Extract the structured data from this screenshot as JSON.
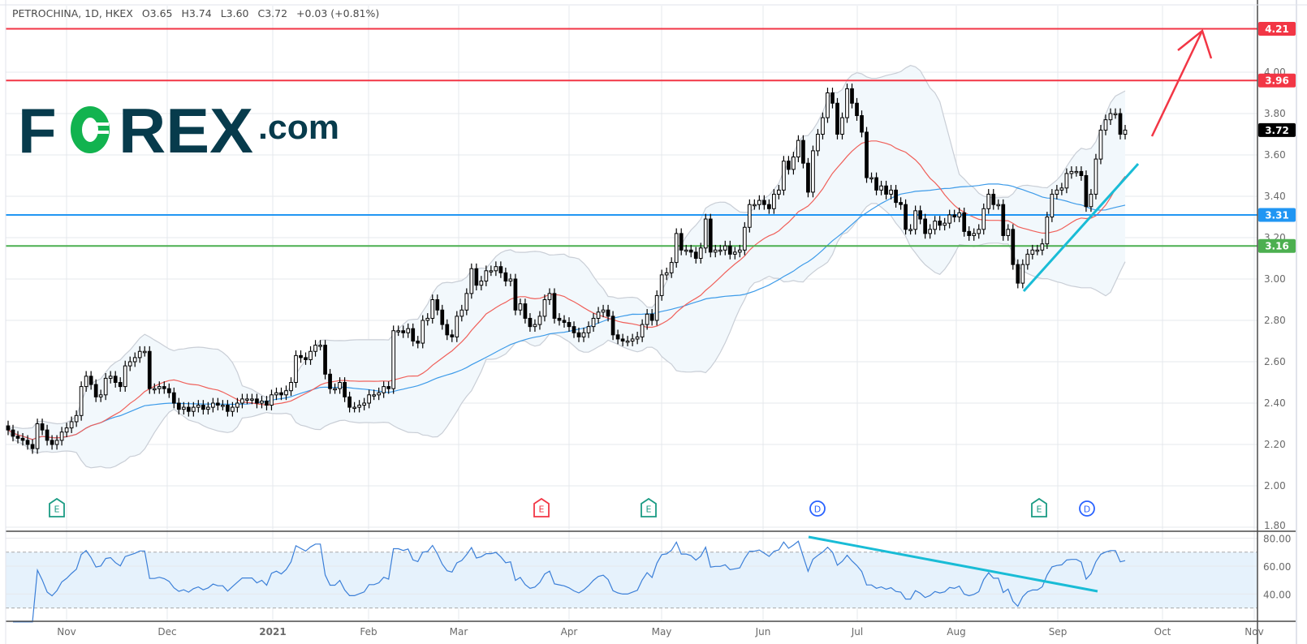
{
  "header": {
    "symbol": "PETROCHINA, 1D, HKEX",
    "open": "O3.65",
    "high": "H3.74",
    "low": "L3.60",
    "close": "C3.72",
    "change": "+0.03 (+0.81%)"
  },
  "logo": {
    "text": "FOREX.com",
    "primary_color": "#073b4c",
    "accent_color": "#12b34f"
  },
  "chart_data": {
    "type": "candlestick",
    "symbol": "PETROCHINA",
    "interval": "1D",
    "exchange": "HKEX",
    "closes": [
      2.27,
      2.24,
      2.23,
      2.22,
      2.2,
      2.18,
      2.3,
      2.27,
      2.22,
      2.2,
      2.22,
      2.26,
      2.28,
      2.31,
      2.34,
      2.48,
      2.53,
      2.49,
      2.43,
      2.44,
      2.52,
      2.53,
      2.5,
      2.48,
      2.58,
      2.6,
      2.62,
      2.65,
      2.65,
      2.47,
      2.47,
      2.48,
      2.47,
      2.45,
      2.4,
      2.37,
      2.38,
      2.36,
      2.38,
      2.39,
      2.37,
      2.38,
      2.4,
      2.39,
      2.39,
      2.36,
      2.38,
      2.4,
      2.42,
      2.42,
      2.42,
      2.4,
      2.41,
      2.39,
      2.44,
      2.45,
      2.44,
      2.46,
      2.5,
      2.63,
      2.62,
      2.61,
      2.65,
      2.68,
      2.68,
      2.54,
      2.47,
      2.47,
      2.5,
      2.43,
      2.38,
      2.38,
      2.39,
      2.4,
      2.44,
      2.44,
      2.45,
      2.48,
      2.47,
      2.75,
      2.75,
      2.74,
      2.76,
      2.7,
      2.69,
      2.8,
      2.81,
      2.9,
      2.85,
      2.78,
      2.73,
      2.72,
      2.82,
      2.85,
      2.93,
      3.05,
      2.97,
      2.99,
      3.04,
      3.04,
      3.06,
      3.03,
      2.99,
      3.0,
      2.85,
      2.88,
      2.81,
      2.77,
      2.78,
      2.82,
      2.9,
      2.93,
      2.81,
      2.8,
      2.79,
      2.77,
      2.74,
      2.72,
      2.74,
      2.77,
      2.81,
      2.84,
      2.85,
      2.82,
      2.73,
      2.71,
      2.7,
      2.7,
      2.71,
      2.72,
      2.78,
      2.83,
      2.8,
      2.92,
      3.02,
      3.03,
      3.08,
      3.22,
      3.14,
      3.14,
      3.13,
      3.1,
      3.15,
      3.29,
      3.13,
      3.14,
      3.14,
      3.16,
      3.12,
      3.13,
      3.14,
      3.25,
      3.36,
      3.36,
      3.38,
      3.36,
      3.34,
      3.41,
      3.43,
      3.57,
      3.53,
      3.59,
      3.67,
      3.56,
      3.42,
      3.62,
      3.7,
      3.78,
      3.9,
      3.85,
      3.7,
      3.78,
      3.92,
      3.85,
      3.79,
      3.71,
      3.49,
      3.49,
      3.43,
      3.45,
      3.41,
      3.43,
      3.37,
      3.36,
      3.24,
      3.24,
      3.33,
      3.29,
      3.22,
      3.24,
      3.28,
      3.26,
      3.27,
      3.31,
      3.3,
      3.32,
      3.23,
      3.21,
      3.22,
      3.24,
      3.34,
      3.41,
      3.36,
      3.36,
      3.21,
      3.24,
      3.07,
      2.98,
      3.07,
      3.12,
      3.14,
      3.14,
      3.17,
      3.3,
      3.41,
      3.43,
      3.44,
      3.51,
      3.52,
      3.52,
      3.5,
      3.35,
      3.41,
      3.58,
      3.72,
      3.77,
      3.8,
      3.8,
      3.7,
      3.72
    ],
    "last_price": "3.72",
    "x_ticks": [
      "Nov",
      "Dec",
      "2021",
      "Feb",
      "Mar",
      "Apr",
      "May",
      "Jun",
      "Jul",
      "Aug",
      "Sep",
      "Oct",
      "Nov"
    ],
    "y_ticks": [
      "4.00",
      "3.80",
      "3.60",
      "3.40",
      "3.20",
      "3.00",
      "2.80",
      "2.60",
      "2.40",
      "2.20",
      "2.00",
      "1.80"
    ],
    "ylim": [
      1.8,
      4.25
    ],
    "grid": true,
    "levels": [
      {
        "value": "4.21",
        "color": "#f23645"
      },
      {
        "value": "3.96",
        "color": "#f23645"
      },
      {
        "value": "3.31",
        "color": "#2196f3"
      },
      {
        "value": "3.16",
        "color": "#4caf50"
      }
    ],
    "indicators": {
      "ma_fast": {
        "period": 20,
        "color": "#f0605a"
      },
      "ma_slow": {
        "period": 50,
        "color": "#3d9be9"
      },
      "bollinger": {
        "period": 20,
        "stddev": 2,
        "color": "#c9ced6",
        "fill": "#f2f8fc"
      }
    },
    "annotations": {
      "price_trendline": {
        "from": [
          "Aug low",
          2.94
        ],
        "to": [
          "late Sep",
          3.58
        ],
        "color": "#19bcd6"
      },
      "target_arrow": {
        "target": 4.21,
        "color": "#f23645"
      },
      "rsi_trendline": {
        "color": "#19bcd6"
      }
    },
    "events": [
      {
        "label": "E",
        "color": "#1a9b83"
      },
      {
        "label": "E",
        "color": "#f23645"
      },
      {
        "label": "E",
        "color": "#1a9b83"
      },
      {
        "label": "D",
        "color": "#2962ff"
      },
      {
        "label": "E",
        "color": "#1a9b83"
      },
      {
        "label": "D",
        "color": "#2962ff"
      }
    ],
    "rsi": {
      "period": 14,
      "y_ticks": [
        "80.00",
        "60.00",
        "40.00"
      ],
      "bands": [
        30,
        70
      ],
      "line_color": "#3b7fd8",
      "band_fill": "#e6f2fc"
    }
  }
}
